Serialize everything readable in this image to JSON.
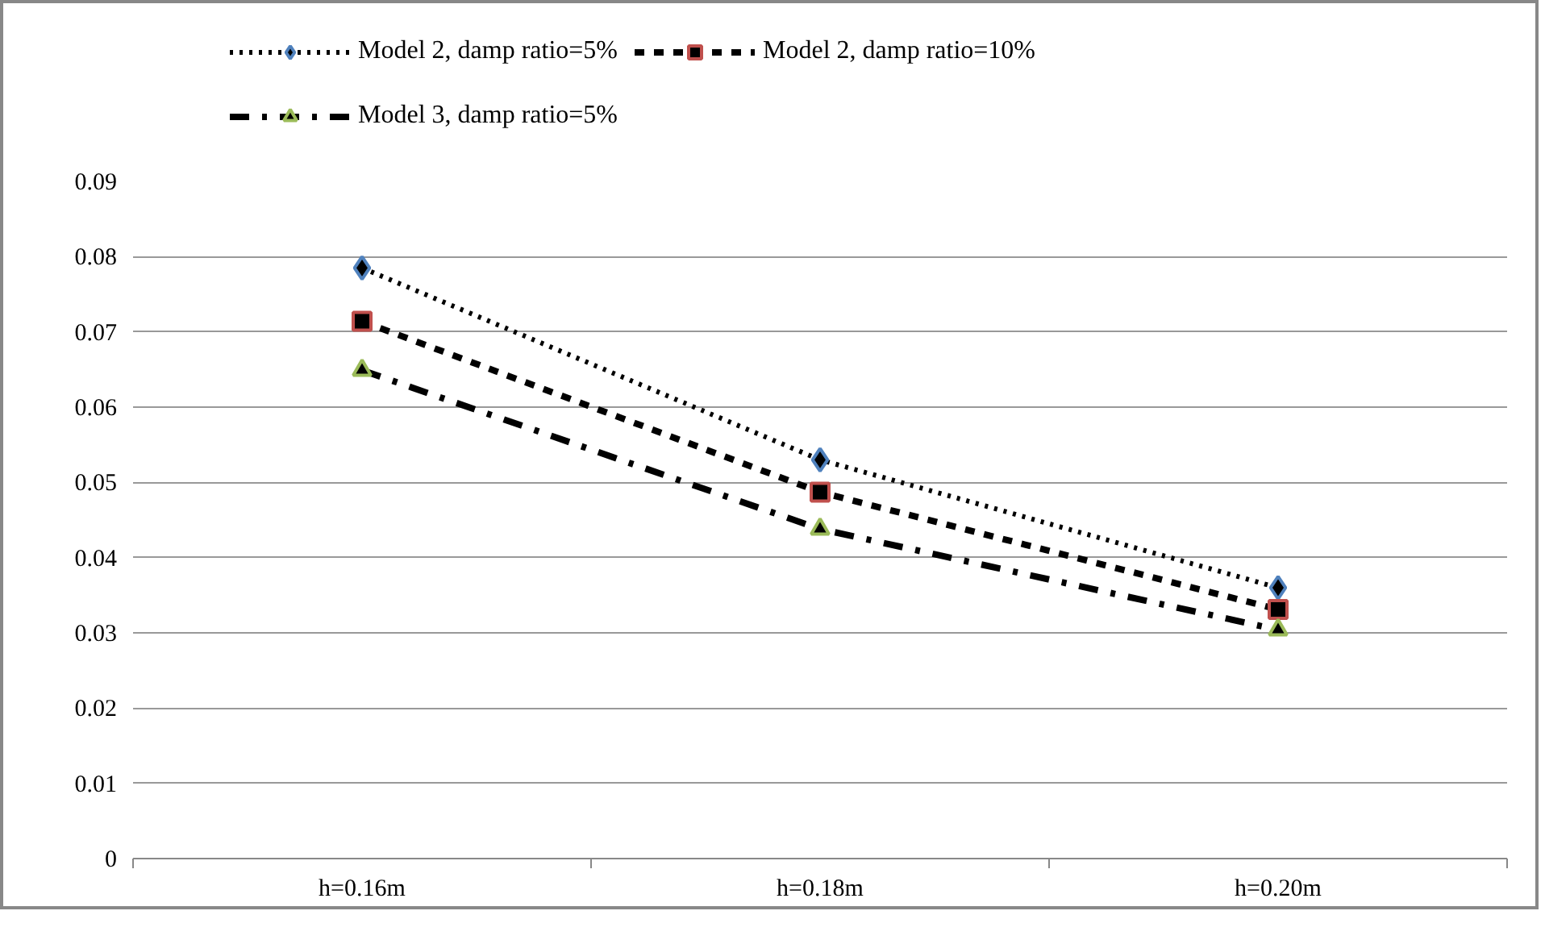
{
  "chart_data": {
    "type": "line",
    "categories": [
      "h=0.16m",
      "h=0.18m",
      "h=0.20m"
    ],
    "series": [
      {
        "name": "Model 2, damp ratio=5%",
        "color": "#4f81bd",
        "marker": "diamond",
        "line_style": "dotted",
        "values": [
          0.0785,
          0.053,
          0.036
        ]
      },
      {
        "name": "Model 2, damp ratio=10%",
        "color": "#c0504d",
        "marker": "square",
        "line_style": "dashed",
        "values": [
          0.0714,
          0.0487,
          0.0331
        ]
      },
      {
        "name": "Model 3, damp ratio=5%",
        "color": "#9bbb59",
        "marker": "triangle",
        "line_style": "dashdot",
        "values": [
          0.0649,
          0.0438,
          0.0304
        ]
      }
    ],
    "ylim": [
      0,
      0.09
    ],
    "yticks": [
      0,
      0.01,
      0.02,
      0.03,
      0.04,
      0.05,
      0.06,
      0.07,
      0.08,
      0.09
    ],
    "grid": "y",
    "legend": "top"
  }
}
